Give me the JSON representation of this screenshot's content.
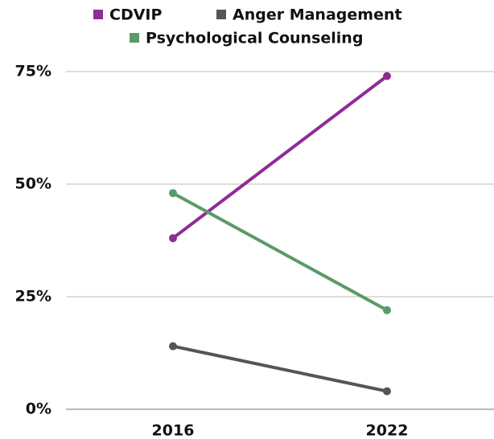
{
  "chart_data": {
    "type": "line",
    "categories": [
      "2016",
      "2022"
    ],
    "series": [
      {
        "name": "CDVIP",
        "color": "#8e2c96",
        "values": [
          38,
          74
        ]
      },
      {
        "name": "Anger Management",
        "color": "#555555",
        "values": [
          14,
          4
        ]
      },
      {
        "name": "Psychological Counseling",
        "color": "#5a9a68",
        "values": [
          48,
          22
        ]
      }
    ],
    "ylim": [
      0,
      75
    ],
    "yticks": [
      {
        "value": 0,
        "label": "0%"
      },
      {
        "value": 25,
        "label": "25%"
      },
      {
        "value": 50,
        "label": "50%"
      },
      {
        "value": 75,
        "label": "75%"
      }
    ],
    "grid": true,
    "legend": "top"
  }
}
